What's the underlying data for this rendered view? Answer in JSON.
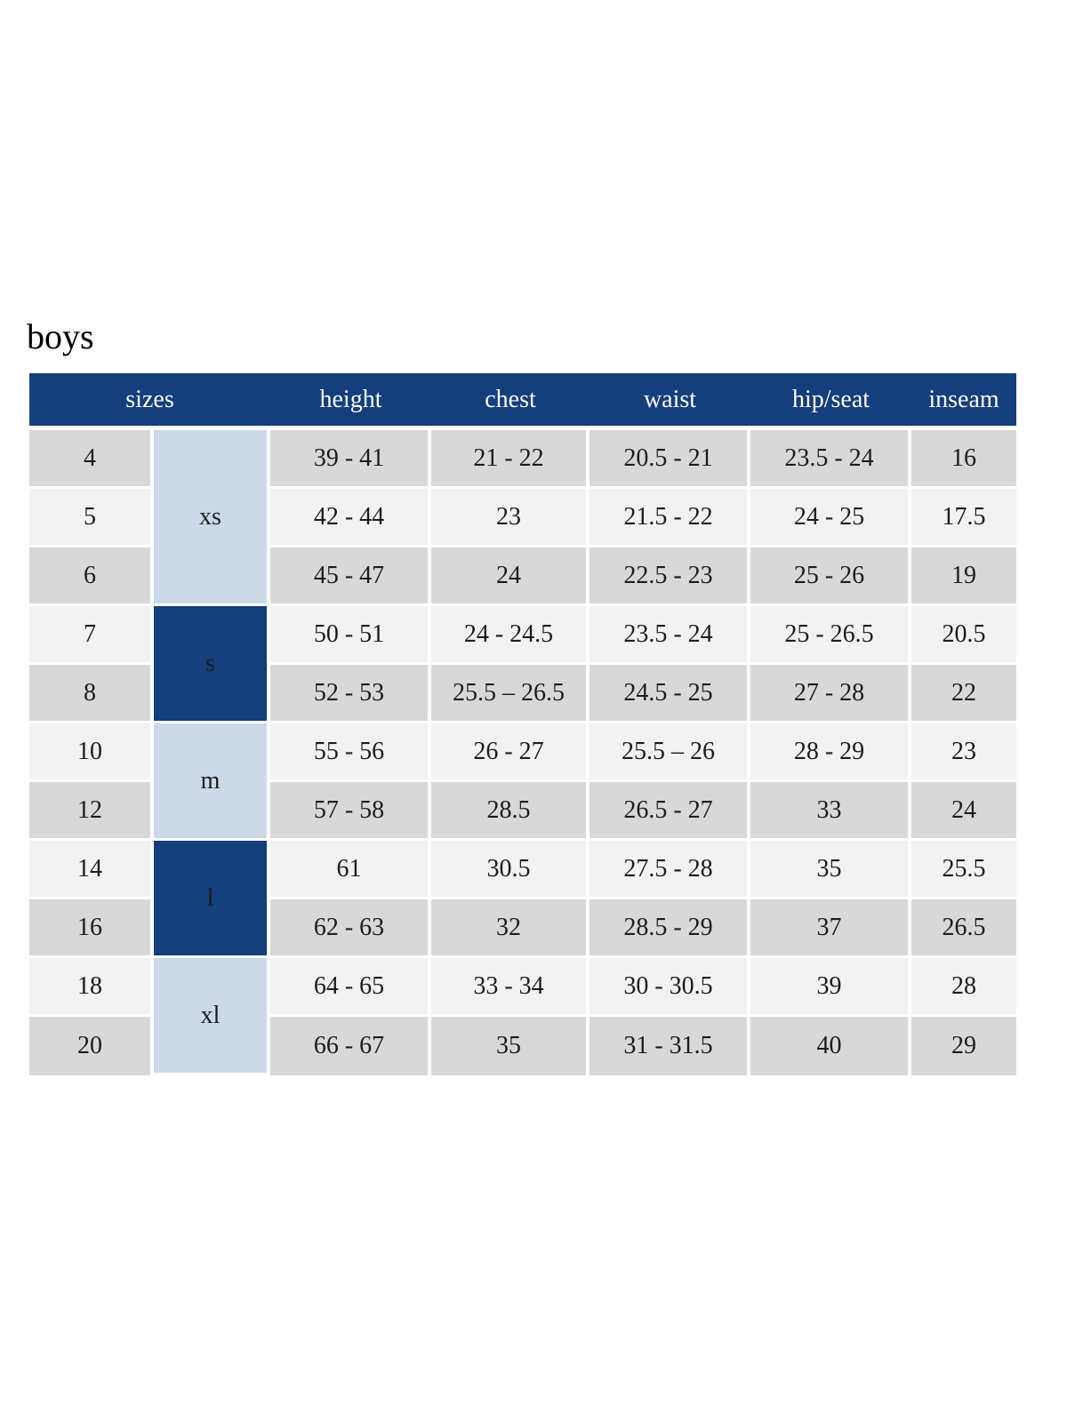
{
  "page": {
    "title": "boys"
  },
  "colors": {
    "header_bg": "#143e7c",
    "header_text": "#ffffff",
    "group_light_bg": "#cdd9e8",
    "group_dark_bg": "#143e7c",
    "row_gray_bg": "#d8d8d8",
    "row_light_bg": "#f2f2f2",
    "body_text": "#1c1c1c",
    "page_bg": "#ffffff"
  },
  "chart_data": {
    "type": "table",
    "title": "boys",
    "header_labels": [
      "sizes",
      "height",
      "chest",
      "waist",
      "hip/seat",
      "inseam"
    ],
    "groups": [
      {
        "label": "xs",
        "start": 0,
        "span": 3,
        "style": "light"
      },
      {
        "label": "s",
        "start": 3,
        "span": 2,
        "style": "dark"
      },
      {
        "label": "m",
        "start": 5,
        "span": 2,
        "style": "light"
      },
      {
        "label": "l",
        "start": 7,
        "span": 2,
        "style": "dark"
      },
      {
        "label": "xl",
        "start": 9,
        "span": 2,
        "style": "light"
      }
    ],
    "rows": [
      {
        "size": "4",
        "height": "39 - 41",
        "chest": "21 - 22",
        "waist": "20.5 - 21",
        "hip_seat": "23.5 - 24",
        "inseam": "16"
      },
      {
        "size": "5",
        "height": "42 - 44",
        "chest": "23",
        "waist": "21.5 - 22",
        "hip_seat": "24 - 25",
        "inseam": "17.5"
      },
      {
        "size": "6",
        "height": "45 - 47",
        "chest": "24",
        "waist": "22.5 - 23",
        "hip_seat": "25 - 26",
        "inseam": "19"
      },
      {
        "size": "7",
        "height": "50 - 51",
        "chest": "24 - 24.5",
        "waist": "23.5 - 24",
        "hip_seat": "25 - 26.5",
        "inseam": "20.5"
      },
      {
        "size": "8",
        "height": "52 - 53",
        "chest": "25.5 – 26.5",
        "waist": "24.5 - 25",
        "hip_seat": "27 - 28",
        "inseam": "22"
      },
      {
        "size": "10",
        "height": "55 - 56",
        "chest": "26 - 27",
        "waist": "25.5 – 26",
        "hip_seat": "28 - 29",
        "inseam": "23"
      },
      {
        "size": "12",
        "height": "57 - 58",
        "chest": "28.5",
        "waist": "26.5 - 27",
        "hip_seat": "33",
        "inseam": "24"
      },
      {
        "size": "14",
        "height": "61",
        "chest": "30.5",
        "waist": "27.5 - 28",
        "hip_seat": "35",
        "inseam": "25.5"
      },
      {
        "size": "16",
        "height": "62 - 63",
        "chest": "32",
        "waist": "28.5 - 29",
        "hip_seat": "37",
        "inseam": "26.5"
      },
      {
        "size": "18",
        "height": "64 - 65",
        "chest": "33 - 34",
        "waist": "30 - 30.5",
        "hip_seat": "39",
        "inseam": "28"
      },
      {
        "size": "20",
        "height": "66 - 67",
        "chest": "35",
        "waist": "31 - 31.5",
        "hip_seat": "40",
        "inseam": "29"
      }
    ]
  }
}
